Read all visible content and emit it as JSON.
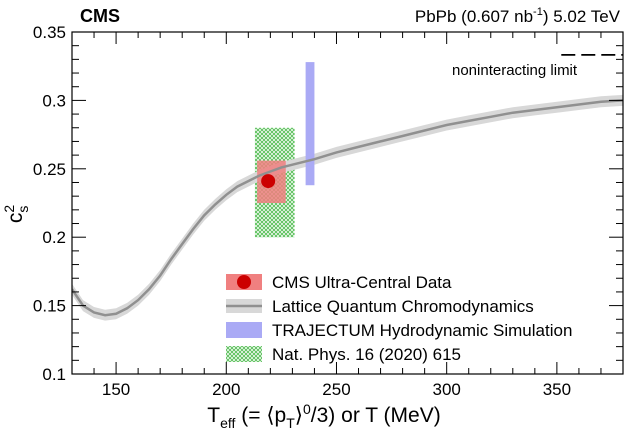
{
  "chart_data": {
    "type": "line",
    "experiment": "CMS",
    "lumi_label": "PbPb (0.607 nb⁻¹) 5.02 TeV",
    "lumi_pre": "PbPb (0.607 nb",
    "lumi_sup": "-1",
    "lumi_post": ") 5.02 TeV",
    "xlabel": "T_eff (= ⟨p_T⟩^0/3) or T (MeV)",
    "ylabel": "c_s^2",
    "xlim": [
      130,
      380
    ],
    "ylim": [
      0.1,
      0.35
    ],
    "xticks": [
      150,
      200,
      250,
      300,
      350
    ],
    "yticks": [
      0.1,
      0.15,
      0.2,
      0.25,
      0.3,
      0.35
    ],
    "ytick_labels": [
      "0.1",
      "0.15",
      "0.2",
      "0.25",
      "0.3",
      "0.35"
    ],
    "noninteracting_limit": {
      "value": 0.3333,
      "x_range": [
        352,
        380
      ],
      "label": "noninteracting limit"
    },
    "series": [
      {
        "name": "CMS Ultra-Central Data",
        "kind": "point",
        "x": 219,
        "y": 0.241,
        "sys_x": [
          214,
          227
        ],
        "sys_y": [
          0.225,
          0.256
        ],
        "color": "#cc0000",
        "band_color": "#f08080"
      },
      {
        "name": "Lattice Quantum Chromodynamics",
        "kind": "band-line",
        "color": "#909090",
        "band_color": "#d8d8d8",
        "band_halfwidth": 0.004,
        "x": [
          130,
          135,
          140,
          145,
          150,
          155,
          160,
          165,
          170,
          175,
          180,
          185,
          190,
          195,
          200,
          205,
          210,
          215,
          220,
          225,
          230,
          240,
          250,
          260,
          270,
          280,
          290,
          300,
          310,
          320,
          330,
          340,
          350,
          360,
          370,
          380
        ],
        "y": [
          0.162,
          0.15,
          0.145,
          0.143,
          0.144,
          0.148,
          0.154,
          0.162,
          0.172,
          0.184,
          0.195,
          0.206,
          0.216,
          0.224,
          0.231,
          0.237,
          0.241,
          0.245,
          0.248,
          0.251,
          0.253,
          0.257,
          0.262,
          0.266,
          0.27,
          0.274,
          0.278,
          0.282,
          0.285,
          0.288,
          0.291,
          0.293,
          0.295,
          0.297,
          0.299,
          0.3
        ]
      },
      {
        "name": "TRAJECTUM Hydrodynamic Simulation",
        "kind": "vertical-band",
        "x_range": [
          236,
          240
        ],
        "y_range": [
          0.238,
          0.328
        ],
        "color": "#aaaaf5"
      },
      {
        "name": "Nat. Phys. 16 (2020) 615",
        "kind": "hatched-box",
        "x_range": [
          213,
          231
        ],
        "y_range": [
          0.2,
          0.28
        ],
        "color": "#66cc66"
      }
    ],
    "legend": [
      "CMS Ultra-Central Data",
      "Lattice Quantum Chromodynamics",
      "TRAJECTUM Hydrodynamic Simulation",
      "Nat. Phys. 16 (2020) 615"
    ],
    "legend_position": "bottom-right"
  }
}
